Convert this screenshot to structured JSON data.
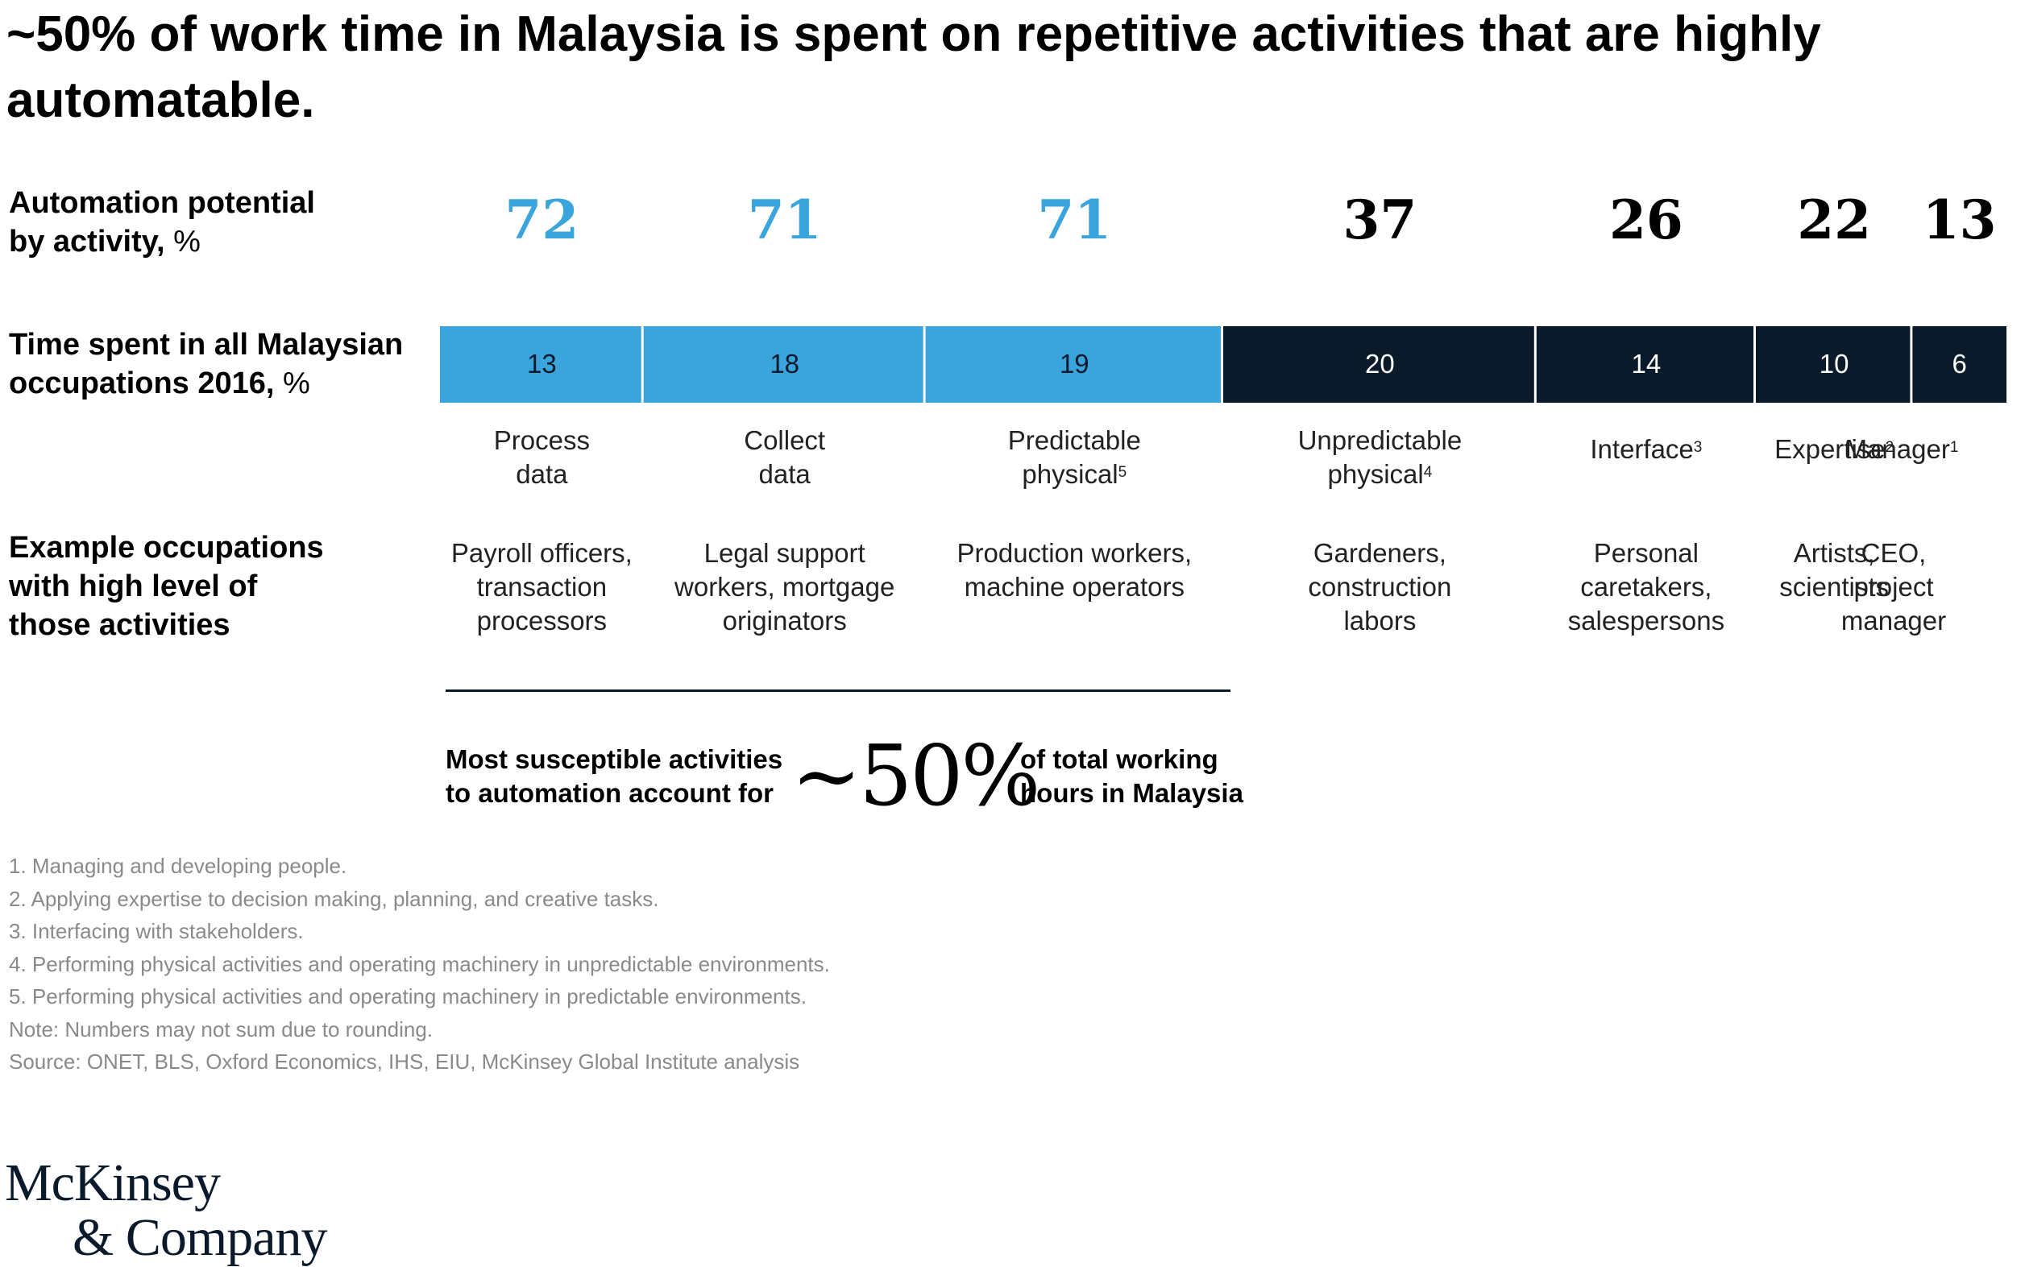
{
  "colors": {
    "light_blue": "#3aa4dc",
    "navy": "#0b1a2b",
    "text_dark": "#000000",
    "note_gray": "#8a8a8a"
  },
  "title": "~50% of work time in Malaysia is spent on repetitive activities that are highly automatable.",
  "rows": {
    "potential_label_bold": "Automation potential by activity,",
    "potential_label_unit": " %",
    "time_label_bold": "Time spent in all Malaysian occupations 2016,",
    "time_label_unit": " %",
    "occupation_label": "Example occupations with high level of those activities"
  },
  "chart_data": {
    "type": "bar",
    "orientation": "stacked-horizontal",
    "categories": [
      "Process data",
      "Collect data",
      "Predictable physical",
      "Unpredictable physical",
      "Interface",
      "Expertise",
      "Manager"
    ],
    "series": [
      {
        "name": "Time spent in all Malaysian occupations 2016, %",
        "values": [
          13,
          18,
          19,
          20,
          14,
          10,
          6
        ]
      },
      {
        "name": "Automation potential by activity, %",
        "values": [
          72,
          71,
          71,
          37,
          26,
          22,
          13
        ]
      }
    ],
    "segment_colors": [
      "#3aa4dc",
      "#3aa4dc",
      "#3aa4dc",
      "#0b1a2b",
      "#0b1a2b",
      "#0b1a2b",
      "#0b1a2b"
    ],
    "potential_colors": [
      "#3aa4dc",
      "#3aa4dc",
      "#3aa4dc",
      "#000000",
      "#000000",
      "#000000",
      "#000000"
    ],
    "activities": [
      {
        "line1": "Process",
        "line2": "data",
        "sup": ""
      },
      {
        "line1": "Collect",
        "line2": "data",
        "sup": ""
      },
      {
        "line1": "Predictable",
        "line2": "physical",
        "sup": "5"
      },
      {
        "line1": "Unpredictable",
        "line2": "physical",
        "sup": "4"
      },
      {
        "line1": "Interface",
        "line2": "",
        "sup": "3"
      },
      {
        "line1": "Expertise",
        "line2": "",
        "sup": "2"
      },
      {
        "line1": "Manager",
        "line2": "",
        "sup": "1"
      }
    ],
    "occupations": [
      [
        "Payroll officers,",
        "transaction",
        "processors"
      ],
      [
        "Legal support",
        "workers, mortgage",
        "originators"
      ],
      [
        "Production workers,",
        "machine operators"
      ],
      [
        "Gardeners,",
        "construction",
        "labors"
      ],
      [
        "Personal",
        "caretakers,",
        "salespersons"
      ],
      [
        "Artists,",
        "scientists"
      ],
      [
        "CEO,",
        "project",
        "manager"
      ]
    ]
  },
  "callout": {
    "left_line1": "Most susceptible activities",
    "left_line2": "to automation account for",
    "big": "~50%",
    "right_line1": "of total working",
    "right_line2": "hours in Malaysia"
  },
  "notes": [
    "1. Managing and developing people.",
    "2. Applying expertise to decision making, planning, and creative tasks.",
    "3. Interfacing with stakeholders.",
    "4. Performing physical activities and operating machinery in unpredictable environments.",
    "5. Performing physical activities and operating machinery in predictable environments.",
    "Note: Numbers may not sum due to rounding.",
    "Source: ONET, BLS, Oxford Economics, IHS, EIU, McKinsey Global Institute analysis"
  ],
  "logo": {
    "line1": "McKinsey",
    "line2": "& Company"
  }
}
